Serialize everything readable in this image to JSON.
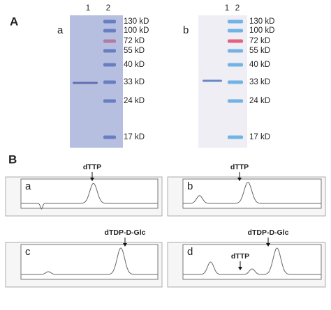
{
  "panel_a": {
    "label": "A",
    "gels": [
      {
        "label": "a",
        "lanes": [
          "1",
          "2"
        ],
        "markers": [
          "130 kD",
          "100 kD",
          "72 kD",
          "55 kD",
          "40 kD",
          "33 kD",
          "24 kD",
          "17 kD"
        ]
      },
      {
        "label": "b",
        "lanes": [
          "1",
          "2"
        ],
        "markers": [
          "130 kD",
          "100 kD",
          "72 kD",
          "55 kD",
          "40 kD",
          "33 kD",
          "24 kD",
          "17 kD"
        ]
      }
    ]
  },
  "panel_b": {
    "label": "B",
    "chromatograms": [
      {
        "label": "a",
        "peaks": [
          "dTTP"
        ]
      },
      {
        "label": "b",
        "peaks": [
          "dTTP"
        ]
      },
      {
        "label": "c",
        "peaks": [
          "dTDP-D-Glc"
        ]
      },
      {
        "label": "d",
        "peaks": [
          "dTTP",
          "dTDP-D-Glc"
        ]
      }
    ]
  }
}
